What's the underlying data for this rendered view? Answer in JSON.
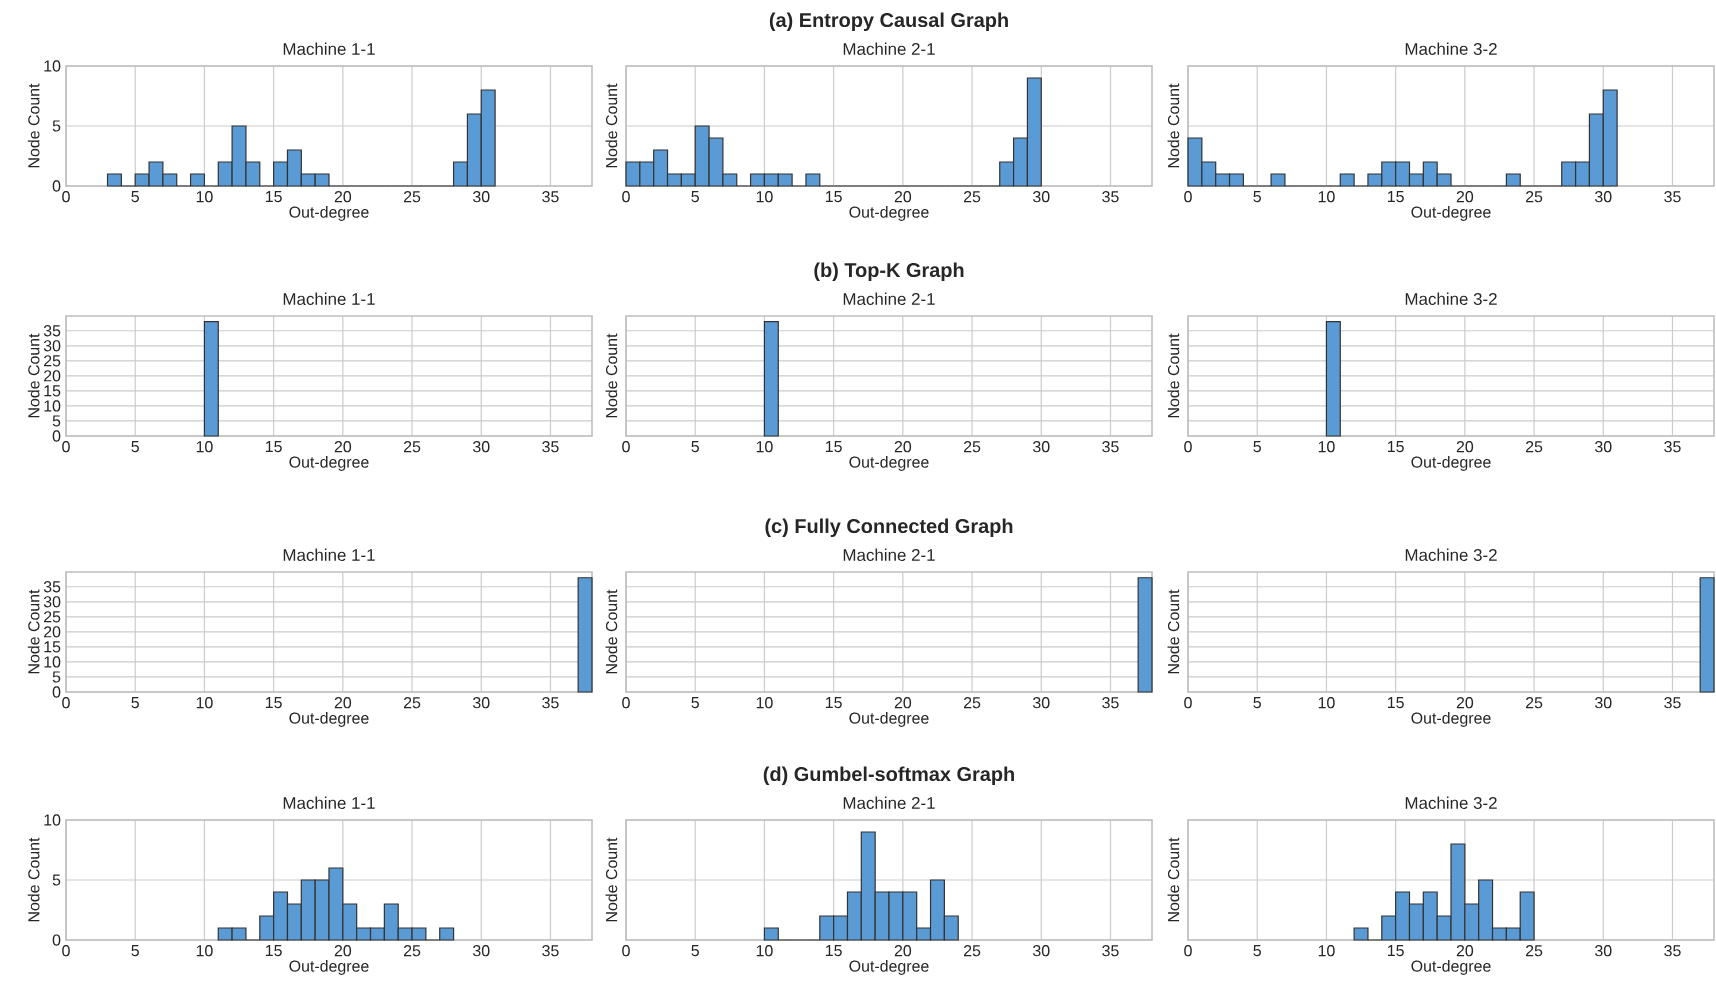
{
  "chart_data": [
    {
      "type": "histogram",
      "title": "Machine 1-1",
      "xlabel": "Out-degree",
      "ylabel": "Node Count",
      "color": "#5b9bd5",
      "bins": [
        3,
        4,
        5,
        6,
        7,
        8,
        9,
        10,
        11,
        12,
        13,
        14,
        15,
        16,
        17,
        18,
        19,
        20,
        21,
        22,
        23,
        24,
        25,
        26,
        27,
        28,
        29,
        30,
        31
      ],
      "values": [
        1,
        0,
        1,
        2,
        1,
        0,
        1,
        0,
        2,
        5,
        2,
        0,
        2,
        3,
        1,
        1,
        0,
        0,
        0,
        0,
        0,
        0,
        0,
        0,
        0,
        2,
        6,
        8
      ],
      "xlim": [
        0,
        38
      ],
      "xticks": [
        0,
        5,
        10,
        15,
        20,
        25,
        30,
        35
      ],
      "ylim": [
        0,
        10
      ],
      "yticks": [
        0,
        5,
        10
      ],
      "grid": true
    },
    {
      "type": "histogram",
      "title": "(a) Entropy Causal Graph",
      "subtitle": "Machine 2-1",
      "xlabel": "Out-degree",
      "ylabel": "Node Count",
      "color": "#5b9bd5",
      "bins": [
        0,
        1,
        2,
        3,
        4,
        5,
        6,
        7,
        8,
        9,
        10,
        11,
        12,
        13,
        14,
        15,
        16,
        17,
        18,
        19,
        20,
        21,
        22,
        23,
        24,
        25,
        26,
        27,
        28,
        29,
        30
      ],
      "values": [
        2,
        2,
        3,
        1,
        1,
        5,
        4,
        1,
        0,
        1,
        1,
        1,
        0,
        1,
        0,
        0,
        0,
        0,
        0,
        0,
        0,
        0,
        0,
        0,
        0,
        0,
        0,
        2,
        4,
        9
      ],
      "xlim": [
        0,
        38
      ],
      "xticks": [
        0,
        5,
        10,
        15,
        20,
        25,
        30,
        35
      ],
      "ylim": [
        0,
        10
      ],
      "yticks": [
        0,
        5,
        10
      ],
      "grid": true,
      "tick_labels": "x"
    },
    {
      "type": "histogram",
      "title": "Machine 3-2",
      "xlabel": "Out-degree",
      "ylabel": "Node Count",
      "color": "#5b9bd5",
      "bins": [
        0,
        1,
        2,
        3,
        4,
        5,
        6,
        7,
        8,
        9,
        10,
        11,
        12,
        13,
        14,
        15,
        16,
        17,
        18,
        19,
        20,
        21,
        22,
        23,
        24,
        25,
        26,
        27,
        28,
        29,
        30,
        31
      ],
      "values": [
        4,
        2,
        1,
        1,
        0,
        0,
        1,
        0,
        0,
        0,
        0,
        1,
        0,
        1,
        2,
        2,
        1,
        2,
        1,
        0,
        0,
        0,
        0,
        1,
        0,
        0,
        0,
        2,
        2,
        6,
        8
      ],
      "xlim": [
        0,
        38
      ],
      "xticks": [
        0,
        5,
        10,
        15,
        20,
        25,
        30,
        35
      ],
      "ylim": [
        0,
        10
      ],
      "yticks": [
        0,
        5,
        10
      ],
      "grid": true,
      "tick_labels": "x"
    },
    {
      "type": "histogram",
      "title": "Machine 1-1",
      "xlabel": "Out-degree",
      "ylabel": "Node Count",
      "color": "#5b9bd5",
      "bins": [
        10,
        11
      ],
      "values": [
        38
      ],
      "xlim": [
        0,
        38
      ],
      "xticks": [
        0,
        5,
        10,
        15,
        20,
        25,
        30,
        35
      ],
      "ylim": [
        0,
        39.9
      ],
      "yticks": [
        0,
        5,
        10,
        15,
        20,
        25,
        30,
        35
      ],
      "grid": true
    },
    {
      "type": "histogram",
      "title": "(b) Top-K Graph",
      "subtitle": "Machine 2-1",
      "xlabel": "Out-degree",
      "ylabel": "Node Count",
      "color": "#5b9bd5",
      "bins": [
        10,
        11
      ],
      "values": [
        38
      ],
      "xlim": [
        0,
        38
      ],
      "xticks": [
        0,
        5,
        10,
        15,
        20,
        25,
        30,
        35
      ],
      "ylim": [
        0,
        39.9
      ],
      "yticks": [
        0,
        5,
        10,
        15,
        20,
        25,
        30,
        35
      ],
      "grid": true,
      "tick_labels": "x"
    },
    {
      "type": "histogram",
      "title": "Machine 3-2",
      "xlabel": "Out-degree",
      "ylabel": "Node Count",
      "color": "#5b9bd5",
      "bins": [
        10,
        11
      ],
      "values": [
        38
      ],
      "xlim": [
        0,
        38
      ],
      "xticks": [
        0,
        5,
        10,
        15,
        20,
        25,
        30,
        35
      ],
      "ylim": [
        0,
        39.9
      ],
      "yticks": [
        0,
        5,
        10,
        15,
        20,
        25,
        30,
        35
      ],
      "grid": true,
      "tick_labels": "x"
    },
    {
      "type": "histogram",
      "title": "Machine 1-1",
      "xlabel": "Out-degree",
      "ylabel": "Node Count",
      "color": "#5b9bd5",
      "bins": [
        37,
        38
      ],
      "values": [
        38
      ],
      "xlim": [
        0,
        38
      ],
      "xticks": [
        0,
        5,
        10,
        15,
        20,
        25,
        30,
        35
      ],
      "ylim": [
        0,
        39.9
      ],
      "yticks": [
        0,
        5,
        10,
        15,
        20,
        25,
        30,
        35
      ],
      "grid": true
    },
    {
      "type": "histogram",
      "title": "(c) Fully Connected Graph",
      "subtitle": "Machine 2-1",
      "xlabel": "Out-degree",
      "ylabel": "Node Count",
      "color": "#5b9bd5",
      "bins": [
        37,
        38
      ],
      "values": [
        38
      ],
      "xlim": [
        0,
        38
      ],
      "xticks": [
        0,
        5,
        10,
        15,
        20,
        25,
        30,
        35
      ],
      "ylim": [
        0,
        39.9
      ],
      "yticks": [
        0,
        5,
        10,
        15,
        20,
        25,
        30,
        35
      ],
      "grid": true,
      "tick_labels": "x"
    },
    {
      "type": "histogram",
      "title": "Machine 3-2",
      "xlabel": "Out-degree",
      "ylabel": "Node Count",
      "color": "#5b9bd5",
      "bins": [
        37,
        38
      ],
      "values": [
        38
      ],
      "xlim": [
        0,
        38
      ],
      "xticks": [
        0,
        5,
        10,
        15,
        20,
        25,
        30,
        35
      ],
      "ylim": [
        0,
        39.9
      ],
      "yticks": [
        0,
        5,
        10,
        15,
        20,
        25,
        30,
        35
      ],
      "grid": true,
      "tick_labels": "x"
    },
    {
      "type": "histogram",
      "title": "Machine 1-1",
      "xlabel": "Out-degree",
      "ylabel": "Node Count",
      "color": "#5b9bd5",
      "bins": [
        11,
        12,
        13,
        14,
        15,
        16,
        17,
        18,
        19,
        20,
        21,
        22,
        23,
        24,
        25,
        26,
        27,
        28
      ],
      "values": [
        1,
        1,
        0,
        2,
        4,
        3,
        5,
        5,
        6,
        3,
        1,
        1,
        3,
        1,
        1,
        0,
        1
      ],
      "xlim": [
        0,
        38
      ],
      "xticks": [
        0,
        5,
        10,
        15,
        20,
        25,
        30,
        35
      ],
      "ylim": [
        0,
        10
      ],
      "yticks": [
        0,
        5,
        10
      ],
      "grid": true
    },
    {
      "type": "histogram",
      "title": "(d) Gumbel-softmax Graph",
      "subtitle": "Machine 2-1",
      "xlabel": "Out-degree",
      "ylabel": "Node Count",
      "color": "#5b9bd5",
      "bins": [
        10,
        11,
        12,
        13,
        14,
        15,
        16,
        17,
        18,
        19,
        20,
        21,
        22,
        23,
        24
      ],
      "values": [
        1,
        0,
        0,
        0,
        2,
        2,
        4,
        9,
        4,
        4,
        4,
        1,
        5,
        2
      ],
      "xlim": [
        0,
        38
      ],
      "xticks": [
        0,
        5,
        10,
        15,
        20,
        25,
        30,
        35
      ],
      "ylim": [
        0,
        10
      ],
      "yticks": [
        0,
        5,
        10
      ],
      "grid": true,
      "tick_labels": "x"
    },
    {
      "type": "histogram",
      "title": "Machine 3-2",
      "xlabel": "Out-degree",
      "ylabel": "Node Count",
      "color": "#5b9bd5",
      "bins": [
        12,
        13,
        14,
        15,
        16,
        17,
        18,
        19,
        20,
        21,
        22,
        23,
        24,
        25
      ],
      "values": [
        1,
        0,
        2,
        4,
        3,
        4,
        2,
        8,
        3,
        5,
        1,
        1,
        4
      ],
      "xlim": [
        0,
        38
      ],
      "xticks": [
        0,
        5,
        10,
        15,
        20,
        25,
        30,
        35
      ],
      "ylim": [
        0,
        10
      ],
      "yticks": [
        0,
        5,
        10
      ],
      "grid": true,
      "tick_labels": "x"
    }
  ]
}
